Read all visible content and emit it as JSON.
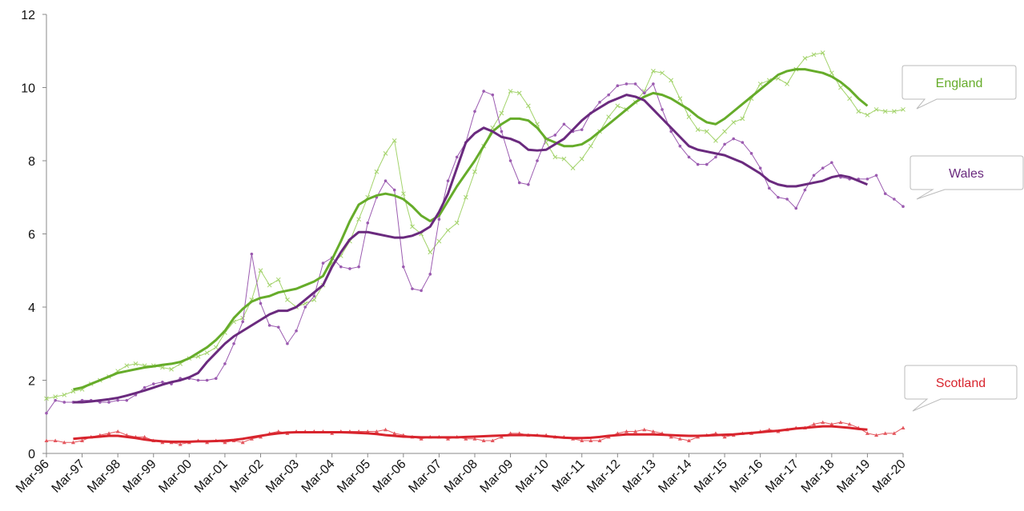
{
  "chart_data": {
    "type": "line",
    "categories": [
      "Mar-96",
      null,
      null,
      null,
      "Mar-97",
      null,
      null,
      null,
      "Mar-98",
      null,
      null,
      null,
      "Mar-99",
      null,
      null,
      null,
      "Mar-00",
      null,
      null,
      null,
      "Mar-01",
      null,
      null,
      null,
      "Mar-02",
      null,
      null,
      null,
      "Mar-03",
      null,
      null,
      null,
      "Mar-04",
      null,
      null,
      null,
      "Mar-05",
      null,
      null,
      null,
      "Mar-06",
      null,
      null,
      null,
      "Mar-07",
      null,
      null,
      null,
      "Mar-08",
      null,
      null,
      null,
      "Mar-09",
      null,
      null,
      null,
      "Mar-10",
      null,
      null,
      null,
      "Mar-11",
      null,
      null,
      null,
      "Mar-12",
      null,
      null,
      null,
      "Mar-13",
      null,
      null,
      null,
      "Mar-14",
      null,
      null,
      null,
      "Mar-15",
      null,
      null,
      null,
      "Mar-16",
      null,
      null,
      null,
      "Mar-17",
      null,
      null,
      null,
      "Mar-18",
      null,
      null,
      null,
      "Mar-19",
      null,
      null,
      null,
      "Mar-20"
    ],
    "ylim": [
      0,
      12
    ],
    "yticks": [
      0,
      2,
      4,
      6,
      8,
      10,
      12
    ],
    "grid": false,
    "series": [
      {
        "name": "England",
        "color": "#a3d36b",
        "line_width": 1,
        "marker": "x",
        "values": [
          1.5,
          1.55,
          1.6,
          1.7,
          1.75,
          1.9,
          2.0,
          2.1,
          2.25,
          2.4,
          2.45,
          2.4,
          2.4,
          2.35,
          2.3,
          2.45,
          2.6,
          2.65,
          2.75,
          2.9,
          3.3,
          3.6,
          3.7,
          4.2,
          5.0,
          4.6,
          4.75,
          4.2,
          4.0,
          4.1,
          4.2,
          4.6,
          5.2,
          5.4,
          5.8,
          6.4,
          7.0,
          7.7,
          8.2,
          8.55,
          7.1,
          6.2,
          6.0,
          5.5,
          5.8,
          6.1,
          6.3,
          7.0,
          7.7,
          8.4,
          8.9,
          9.3,
          9.9,
          9.85,
          9.5,
          9.0,
          8.5,
          8.1,
          8.05,
          7.8,
          8.05,
          8.4,
          8.8,
          9.2,
          9.5,
          9.4,
          9.6,
          9.9,
          10.45,
          10.4,
          10.2,
          9.7,
          9.2,
          8.85,
          8.8,
          8.55,
          8.8,
          9.05,
          9.15,
          9.7,
          10.1,
          10.2,
          10.25,
          10.1,
          10.5,
          10.8,
          10.9,
          10.95,
          10.4,
          10.0,
          9.7,
          9.35,
          9.25,
          9.4,
          9.35,
          9.35,
          9.4
        ]
      },
      {
        "name": "Wales",
        "color": "#9b5bb0",
        "line_width": 1,
        "marker": "dot",
        "values": [
          1.1,
          1.45,
          1.4,
          1.4,
          1.45,
          1.45,
          1.4,
          1.4,
          1.45,
          1.45,
          1.6,
          1.8,
          1.9,
          1.95,
          1.9,
          2.05,
          2.05,
          2.0,
          2.0,
          2.05,
          2.45,
          3.0,
          3.6,
          5.45,
          4.1,
          3.5,
          3.45,
          3.0,
          3.35,
          4.0,
          4.3,
          5.2,
          5.35,
          5.1,
          5.05,
          5.1,
          6.3,
          7.0,
          7.45,
          7.2,
          5.1,
          4.5,
          4.45,
          4.9,
          6.4,
          7.45,
          8.1,
          8.5,
          9.35,
          9.9,
          9.8,
          8.8,
          8.0,
          7.4,
          7.35,
          8.0,
          8.6,
          8.7,
          9.0,
          8.8,
          8.85,
          9.3,
          9.6,
          9.8,
          10.05,
          10.1,
          10.1,
          9.85,
          10.1,
          9.4,
          8.8,
          8.4,
          8.1,
          7.9,
          7.9,
          8.1,
          8.45,
          8.6,
          8.5,
          8.2,
          7.8,
          7.25,
          7.0,
          6.95,
          6.7,
          7.2,
          7.6,
          7.8,
          7.95,
          7.55,
          7.5,
          7.5,
          7.5,
          7.6,
          7.1,
          6.95,
          6.75
        ]
      },
      {
        "name": "Scotland",
        "color": "#e4575e",
        "line_width": 1,
        "marker": "triangle",
        "values": [
          0.35,
          0.35,
          0.3,
          0.3,
          0.35,
          0.45,
          0.5,
          0.55,
          0.6,
          0.5,
          0.45,
          0.45,
          0.35,
          0.3,
          0.3,
          0.25,
          0.3,
          0.35,
          0.3,
          0.35,
          0.3,
          0.35,
          0.3,
          0.4,
          0.45,
          0.55,
          0.6,
          0.55,
          0.6,
          0.6,
          0.6,
          0.6,
          0.55,
          0.6,
          0.6,
          0.6,
          0.6,
          0.6,
          0.65,
          0.55,
          0.5,
          0.45,
          0.4,
          0.45,
          0.45,
          0.4,
          0.45,
          0.4,
          0.4,
          0.35,
          0.35,
          0.45,
          0.55,
          0.55,
          0.5,
          0.5,
          0.5,
          0.45,
          0.45,
          0.4,
          0.35,
          0.35,
          0.35,
          0.45,
          0.55,
          0.6,
          0.6,
          0.65,
          0.6,
          0.55,
          0.45,
          0.4,
          0.35,
          0.45,
          0.5,
          0.55,
          0.45,
          0.5,
          0.55,
          0.55,
          0.6,
          0.65,
          0.6,
          0.65,
          0.7,
          0.7,
          0.8,
          0.85,
          0.8,
          0.85,
          0.8,
          0.7,
          0.55,
          0.5,
          0.55,
          0.55,
          0.7
        ]
      },
      {
        "color": "#66ac2a",
        "line_width": 3,
        "values": [
          null,
          null,
          null,
          1.75,
          1.8,
          1.9,
          2.0,
          2.1,
          2.2,
          2.25,
          2.3,
          2.35,
          2.38,
          2.42,
          2.45,
          2.5,
          2.6,
          2.75,
          2.9,
          3.1,
          3.35,
          3.7,
          3.95,
          4.15,
          4.25,
          4.3,
          4.4,
          4.45,
          4.5,
          4.6,
          4.7,
          4.85,
          5.3,
          5.8,
          6.35,
          6.8,
          6.95,
          7.05,
          7.1,
          7.05,
          6.95,
          6.75,
          6.5,
          6.35,
          6.5,
          6.9,
          7.3,
          7.65,
          8.0,
          8.4,
          8.8,
          9.0,
          9.15,
          9.15,
          9.1,
          8.9,
          8.6,
          8.5,
          8.4,
          8.4,
          8.45,
          8.6,
          8.8,
          9.0,
          9.2,
          9.4,
          9.6,
          9.75,
          9.85,
          9.8,
          9.7,
          9.55,
          9.4,
          9.2,
          9.05,
          9.0,
          9.15,
          9.35,
          9.55,
          9.75,
          9.95,
          10.15,
          10.35,
          10.45,
          10.5,
          10.5,
          10.45,
          10.4,
          10.3,
          10.15,
          9.95,
          9.7,
          9.5,
          null,
          null,
          null,
          null
        ]
      },
      {
        "color": "#6a2a7e",
        "line_width": 3,
        "values": [
          null,
          null,
          null,
          1.4,
          1.4,
          1.42,
          1.45,
          1.48,
          1.52,
          1.58,
          1.65,
          1.72,
          1.8,
          1.88,
          1.95,
          2.0,
          2.08,
          2.2,
          2.5,
          2.75,
          3.0,
          3.2,
          3.35,
          3.5,
          3.65,
          3.8,
          3.9,
          3.9,
          4.0,
          4.2,
          4.4,
          4.6,
          5.1,
          5.5,
          5.85,
          6.05,
          6.05,
          6.0,
          5.95,
          5.9,
          5.9,
          5.95,
          6.05,
          6.2,
          6.6,
          7.1,
          7.8,
          8.5,
          8.75,
          8.9,
          8.8,
          8.65,
          8.6,
          8.5,
          8.3,
          8.28,
          8.3,
          8.45,
          8.6,
          8.85,
          9.1,
          9.3,
          9.45,
          9.6,
          9.7,
          9.8,
          9.75,
          9.65,
          9.4,
          9.15,
          8.9,
          8.65,
          8.4,
          8.3,
          8.25,
          8.2,
          8.15,
          8.05,
          7.95,
          7.8,
          7.65,
          7.45,
          7.35,
          7.3,
          7.3,
          7.35,
          7.4,
          7.45,
          7.55,
          7.6,
          7.55,
          7.45,
          7.35,
          null,
          null,
          null,
          null
        ]
      },
      {
        "color": "#d8242d",
        "line_width": 3,
        "values": [
          null,
          null,
          null,
          0.4,
          0.42,
          0.44,
          0.46,
          0.48,
          0.48,
          0.45,
          0.42,
          0.38,
          0.35,
          0.33,
          0.32,
          0.32,
          0.32,
          0.33,
          0.33,
          0.34,
          0.35,
          0.37,
          0.4,
          0.44,
          0.48,
          0.52,
          0.55,
          0.57,
          0.58,
          0.58,
          0.58,
          0.58,
          0.58,
          0.58,
          0.57,
          0.56,
          0.55,
          0.53,
          0.5,
          0.48,
          0.46,
          0.45,
          0.44,
          0.44,
          0.44,
          0.44,
          0.44,
          0.45,
          0.46,
          0.47,
          0.48,
          0.49,
          0.5,
          0.5,
          0.5,
          0.49,
          0.47,
          0.45,
          0.43,
          0.42,
          0.42,
          0.43,
          0.45,
          0.48,
          0.5,
          0.52,
          0.52,
          0.52,
          0.52,
          0.51,
          0.5,
          0.49,
          0.48,
          0.48,
          0.49,
          0.5,
          0.51,
          0.52,
          0.54,
          0.56,
          0.58,
          0.6,
          0.62,
          0.65,
          0.68,
          0.7,
          0.72,
          0.74,
          0.74,
          0.72,
          0.7,
          0.67,
          0.65,
          null,
          null,
          null,
          null
        ]
      }
    ]
  }
}
